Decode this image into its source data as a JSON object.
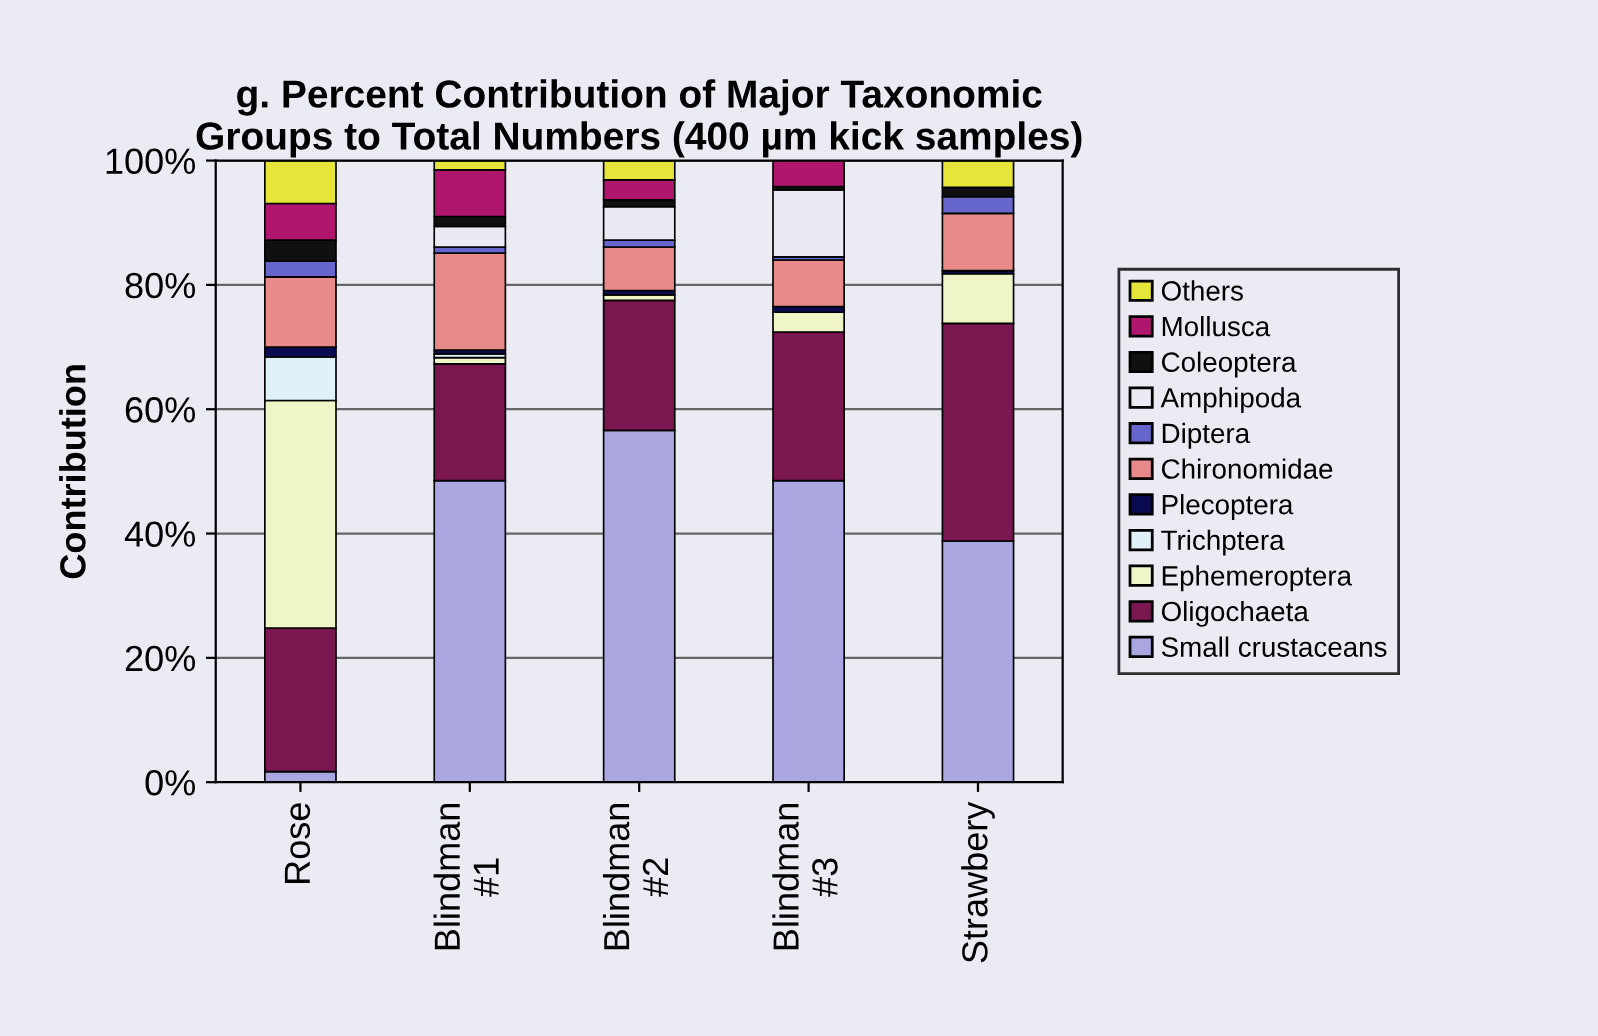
{
  "chart_data": {
    "type": "bar",
    "stacked": true,
    "title": "g. Percent Contribution of Major Taxonomic\nGroups to Total Numbers (400 µm kick samples)",
    "ylabel": "Contribution",
    "categories": [
      "Rose",
      "Blindman\n#1",
      "Blindman\n#2",
      "Blindman\n#3",
      "Strawbery"
    ],
    "series": [
      {
        "name": "Small crustaceans",
        "color": "#aaa6e0",
        "values": [
          1.7,
          48.5,
          56.6,
          48.5,
          38.8
        ]
      },
      {
        "name": "Oligochaeta",
        "color": "#7a1650",
        "values": [
          23.1,
          18.8,
          20.9,
          23.9,
          35.0
        ]
      },
      {
        "name": "Ephemeroptera",
        "color": "#f0f5c8",
        "values": [
          36.6,
          1.0,
          0.9,
          3.2,
          8.0
        ]
      },
      {
        "name": "Trichptera",
        "color": "#e0f2f8",
        "values": [
          7.0,
          0.6,
          0,
          0,
          0
        ]
      },
      {
        "name": "Plecoptera",
        "color": "#0a0a50",
        "values": [
          1.6,
          0.6,
          0.7,
          0.9,
          0.5
        ]
      },
      {
        "name": "Chironomidae",
        "color": "#e88a8a",
        "values": [
          11.3,
          15.6,
          7.0,
          7.5,
          9.2
        ]
      },
      {
        "name": "Diptera",
        "color": "#6666cc",
        "values": [
          2.5,
          1.0,
          1.1,
          0.5,
          2.7
        ]
      },
      {
        "name": "Amphipoda",
        "color": "#eaeaf5",
        "values": [
          0,
          3.3,
          5.4,
          10.8,
          0
        ]
      },
      {
        "name": "Coleoptera",
        "color": "#101010",
        "values": [
          3.4,
          1.6,
          1.1,
          0.5,
          1.5
        ]
      },
      {
        "name": "Mollusca",
        "color": "#b0166e",
        "values": [
          5.9,
          7.5,
          3.2,
          4.2,
          0
        ]
      },
      {
        "name": "Others",
        "color": "#e6e63a",
        "values": [
          6.9,
          1.5,
          3.1,
          0,
          4.3
        ]
      }
    ],
    "ylim": [
      0,
      100
    ],
    "yticks": [
      {
        "value": 0,
        "label": "0%"
      },
      {
        "value": 20,
        "label": "20%"
      },
      {
        "value": 40,
        "label": "40%"
      },
      {
        "value": 60,
        "label": "60%"
      },
      {
        "value": 80,
        "label": "80%"
      },
      {
        "value": 100,
        "label": "100%"
      }
    ],
    "grid": "y",
    "legend": "right"
  }
}
